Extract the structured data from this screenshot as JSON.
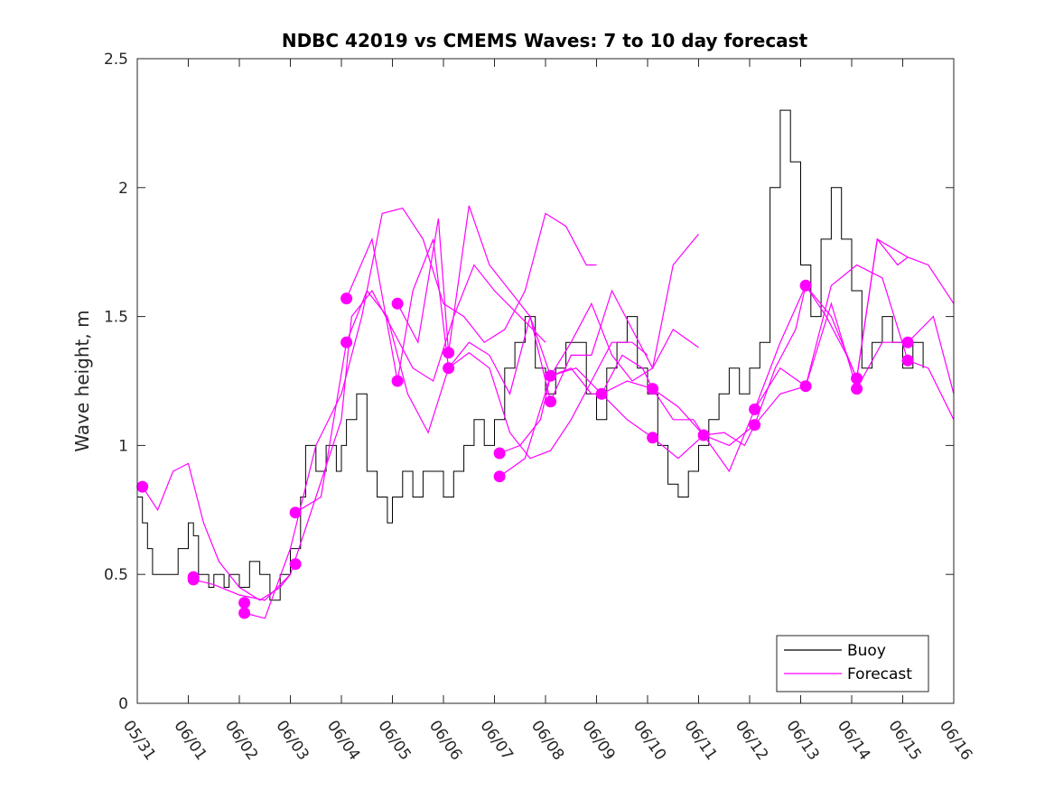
{
  "chart_data": {
    "type": "line",
    "title": "NDBC 42019 vs CMEMS Waves: 7 to 10 day forecast",
    "xlabel": "",
    "ylabel": "Wave height, m",
    "x_unit": "days",
    "x_tick_labels": [
      "05/31",
      "06/01",
      "06/02",
      "06/03",
      "06/04",
      "06/05",
      "06/06",
      "06/07",
      "06/08",
      "06/09",
      "06/10",
      "06/11",
      "06/12",
      "06/13",
      "06/14",
      "06/15",
      "06/16"
    ],
    "xlim": [
      0,
      16
    ],
    "ylim": [
      0,
      2.5
    ],
    "y_ticks": [
      0,
      0.5,
      1,
      1.5,
      2,
      2.5
    ],
    "grid": false,
    "legend_position": "bottom-right",
    "colors": {
      "buoy": "#000000",
      "forecast": "#ff00ff",
      "axes": "#262626"
    },
    "legend": [
      "Buoy",
      "Forecast"
    ],
    "buoy": {
      "name": "Buoy",
      "x": [
        0,
        0.1,
        0.2,
        0.3,
        0.5,
        0.8,
        1.0,
        1.1,
        1.2,
        1.4,
        1.5,
        1.7,
        1.8,
        2.0,
        2.2,
        2.4,
        2.6,
        2.8,
        3.0,
        3.2,
        3.3,
        3.5,
        3.7,
        3.9,
        4.0,
        4.1,
        4.3,
        4.5,
        4.7,
        4.9,
        5.0,
        5.2,
        5.4,
        5.6,
        5.8,
        6.0,
        6.2,
        6.4,
        6.6,
        6.8,
        7.0,
        7.2,
        7.4,
        7.6,
        7.8,
        8.0,
        8.2,
        8.4,
        8.6,
        8.8,
        9.0,
        9.2,
        9.4,
        9.6,
        9.8,
        10.0,
        10.2,
        10.4,
        10.6,
        10.8,
        11.0,
        11.2,
        11.4,
        11.6,
        11.8,
        12.0,
        12.2,
        12.4,
        12.6,
        12.8,
        13.0,
        13.2,
        13.4,
        13.6,
        13.8,
        14.0,
        14.2,
        14.4,
        14.6,
        14.8,
        15.0,
        15.2,
        15.4
      ],
      "values": [
        0.8,
        0.7,
        0.6,
        0.5,
        0.5,
        0.6,
        0.7,
        0.65,
        0.5,
        0.45,
        0.5,
        0.45,
        0.5,
        0.45,
        0.55,
        0.5,
        0.4,
        0.5,
        0.6,
        0.8,
        1.0,
        0.9,
        1.0,
        0.9,
        1.0,
        1.1,
        1.2,
        0.9,
        0.8,
        0.7,
        0.8,
        0.9,
        0.8,
        0.9,
        0.9,
        0.8,
        0.9,
        1.0,
        1.1,
        1.0,
        1.1,
        1.3,
        1.4,
        1.5,
        1.3,
        1.2,
        1.3,
        1.4,
        1.4,
        1.2,
        1.1,
        1.3,
        1.4,
        1.5,
        1.3,
        1.2,
        1.0,
        0.85,
        0.8,
        0.9,
        1.0,
        1.1,
        1.2,
        1.3,
        1.2,
        1.3,
        1.4,
        2.0,
        2.3,
        2.1,
        1.7,
        1.5,
        1.8,
        2.0,
        1.8,
        1.6,
        1.3,
        1.4,
        1.5,
        1.4,
        1.3,
        1.4,
        1.3
      ]
    },
    "forecast_series": [
      {
        "x": [
          0.1,
          0.4,
          0.7,
          1.0,
          1.3,
          1.6,
          2.0,
          2.4,
          2.8,
          3.0
        ],
        "values": [
          0.84,
          0.75,
          0.9,
          0.93,
          0.7,
          0.55,
          0.45,
          0.4,
          0.45,
          0.5
        ]
      },
      {
        "x": [
          1.1,
          1.5,
          2.0,
          2.5,
          3.0,
          3.5,
          4.0,
          4.2,
          4.6,
          5.0,
          5.4,
          5.8,
          6.2,
          6.6,
          7.0,
          7.5,
          8.0
        ],
        "values": [
          0.48,
          0.46,
          0.42,
          0.4,
          0.5,
          0.8,
          1.1,
          1.5,
          1.6,
          1.45,
          1.3,
          1.25,
          1.5,
          1.7,
          1.6,
          1.5,
          1.4
        ]
      },
      {
        "x": [
          2.1,
          2.5,
          3.0,
          3.5,
          4.0,
          4.4,
          4.8,
          5.2,
          5.6,
          6.0,
          6.4,
          6.8,
          7.2,
          7.6,
          8.0,
          8.4,
          8.8,
          9.0
        ],
        "values": [
          0.35,
          0.33,
          0.6,
          1.0,
          1.2,
          1.5,
          1.9,
          1.92,
          1.8,
          1.55,
          1.5,
          1.4,
          1.45,
          1.6,
          1.9,
          1.85,
          1.7,
          1.7
        ]
      },
      {
        "x": [
          3.1,
          3.6,
          4.1,
          4.5,
          4.9,
          5.3,
          5.7,
          6.1,
          6.5,
          6.9,
          7.3,
          7.7,
          8.1,
          8.5,
          8.9,
          9.3,
          9.7,
          10.0
        ],
        "values": [
          0.74,
          0.8,
          1.4,
          1.6,
          1.5,
          1.2,
          1.05,
          1.3,
          1.36,
          1.3,
          1.05,
          0.95,
          0.98,
          1.1,
          1.25,
          1.4,
          1.4,
          1.35
        ]
      },
      {
        "x": [
          4.1,
          4.6,
          5.1,
          5.4,
          5.8,
          6.1,
          6.5,
          6.9,
          7.3,
          7.7,
          8.1,
          8.5,
          8.9,
          9.3,
          9.7,
          10.1,
          10.5,
          11.0
        ],
        "values": [
          1.57,
          1.8,
          1.25,
          1.6,
          1.8,
          1.3,
          1.4,
          1.35,
          1.2,
          1.5,
          1.27,
          1.4,
          1.55,
          1.35,
          1.25,
          1.3,
          1.45,
          1.38
        ]
      },
      {
        "x": [
          5.1,
          5.5,
          5.9,
          6.1,
          6.5,
          6.9,
          7.3,
          7.7,
          8.1,
          8.5,
          8.9,
          9.3,
          9.7,
          10.1,
          10.5,
          11.0
        ],
        "values": [
          1.55,
          1.4,
          1.88,
          1.36,
          1.93,
          1.7,
          1.6,
          1.5,
          1.17,
          1.35,
          1.35,
          1.6,
          1.45,
          1.3,
          1.7,
          1.82
        ]
      },
      {
        "x": [
          7.1,
          7.5,
          7.9,
          8.1,
          8.5,
          8.9,
          9.1,
          9.5,
          9.9,
          10.1,
          10.5,
          10.9,
          11.1,
          11.5,
          11.9,
          12.1,
          12.5,
          12.9,
          13.1,
          13.5,
          13.9,
          14.1,
          14.5,
          14.9,
          15.1
        ],
        "values": [
          0.97,
          1.0,
          1.1,
          1.27,
          1.3,
          1.2,
          1.2,
          1.35,
          1.3,
          1.22,
          1.1,
          1.1,
          1.04,
          1.05,
          1.0,
          1.08,
          1.3,
          1.45,
          1.62,
          1.5,
          1.35,
          1.26,
          1.8,
          1.7,
          1.73
        ]
      },
      {
        "x": [
          7.1,
          7.6,
          8.1,
          8.6,
          9.1,
          9.6,
          10.1,
          10.6,
          11.1,
          11.6,
          12.1,
          12.6,
          13.1,
          13.6,
          14.1,
          14.6,
          15.1,
          15.6,
          16.0
        ],
        "values": [
          0.88,
          0.95,
          1.27,
          1.3,
          1.2,
          1.1,
          1.03,
          0.95,
          1.04,
          0.9,
          1.14,
          1.3,
          1.23,
          1.55,
          1.22,
          1.4,
          1.4,
          1.5,
          1.2
        ]
      },
      {
        "x": [
          9.1,
          9.6,
          10.1,
          10.6,
          11.1,
          11.6,
          12.1,
          12.6,
          13.1,
          13.6,
          14.1,
          14.6,
          15.1,
          15.5,
          16.0
        ],
        "values": [
          1.2,
          1.25,
          1.22,
          1.15,
          1.04,
          1.0,
          1.08,
          1.2,
          1.23,
          1.62,
          1.7,
          1.65,
          1.33,
          1.3,
          1.1
        ]
      },
      {
        "x": [
          12.1,
          12.6,
          13.1,
          13.6,
          14.1,
          14.5,
          15.1,
          15.5,
          16.0
        ],
        "values": [
          1.14,
          1.4,
          1.62,
          1.5,
          1.26,
          1.8,
          1.73,
          1.7,
          1.55
        ]
      }
    ],
    "forecast_markers": {
      "name": "Forecast",
      "x": [
        0.1,
        1.1,
        1.1,
        2.1,
        2.1,
        3.1,
        3.1,
        4.1,
        4.1,
        5.1,
        5.1,
        6.1,
        6.1,
        7.1,
        7.1,
        8.1,
        8.1,
        9.1,
        10.1,
        10.1,
        11.1,
        12.1,
        12.1,
        13.1,
        13.1,
        14.1,
        14.1,
        15.1,
        15.1
      ],
      "values": [
        0.84,
        0.49,
        0.48,
        0.39,
        0.35,
        0.74,
        0.54,
        1.57,
        1.4,
        1.55,
        1.25,
        1.36,
        1.3,
        0.97,
        0.88,
        1.27,
        1.17,
        1.2,
        1.22,
        1.03,
        1.04,
        1.14,
        1.08,
        1.62,
        1.23,
        1.26,
        1.22,
        1.4,
        1.33
      ]
    }
  }
}
